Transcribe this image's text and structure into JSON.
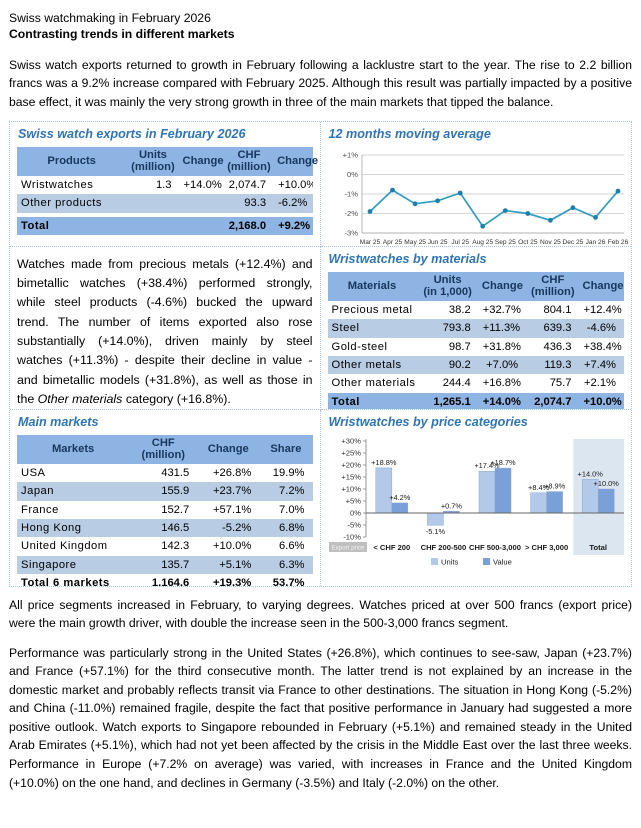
{
  "page": {
    "title_line1": "Swiss watchmaking in February 2026",
    "title_line2": "Contrasting trends in different markets",
    "intro": "Swiss watch exports returned to growth in February following a lacklustre start to the year. The rise to 2.2 billion francs was a 9.2% increase compared with February 2025.  Although this result was partially impacted by a positive base effect, it was mainly the very strong growth in three of the main markets that tipped the balance.",
    "materials_paragraph": {
      "pre": "Watches made from precious metals (+12.4%) and bimetallic watches (+38.4%) performed strongly, while steel products (-4.6%) bucked the upward trend. The number of items exported also rose substantially (+14.0%), driven mainly by steel watches (+11.3%) - despite their decline in value - and bimetallic models (+31.8%), as well as those in the ",
      "italic": "Other materials",
      "post": " category (+16.8%)."
    },
    "prices_paragraph": "All price segments increased in February, to varying degrees. Watches priced at over 500 francs (export price) were the main growth driver, with double the increase seen in the 500-3,000 francs segment.",
    "markets_paragraph": "Performance was particularly strong in the United States (+26.8%), which continues to see-saw, Japan (+23.7%) and France (+57.1%) for the third consecutive month. The latter trend is not explained by an increase in the domestic market and probably reflects transit via France to other destinations. The situation in Hong Kong (-5.2%) and China (-11.0%) remained fragile, despite the fact that positive performance in January had suggested a more positive outlook. Watch exports to Singapore rebounded in February (+5.1%) and remained steady in the United Arab Emirates (+5.1%), which had not yet been affected by the crisis in the Middle East over the last three weeks. Performance in Europe (+7.2% on average) was varied, with increases in France and the United Kingdom (+10.0%) on the one hand, and declines in Germany (-3.5%) and Italy (-2.0%) on the other."
  },
  "exports_table": {
    "title": "Swiss watch exports in February 2026",
    "headers": {
      "products": "Products",
      "units_l1": "Units",
      "units_l2": "(million)",
      "change1": "Change",
      "chf_l1": "CHF",
      "chf_l2": "(million)",
      "change2": "Change"
    },
    "rows": [
      {
        "name": "Wristwatches",
        "units": "1.3",
        "units_change": "+14.0%",
        "chf": "2,074.7",
        "chf_change": "+10.0%"
      },
      {
        "name": "Other products",
        "units": "",
        "units_change": "",
        "chf": "93.3",
        "chf_change": "-6.2%"
      }
    ],
    "total": {
      "name": "Total",
      "units": "",
      "units_change": "",
      "chf": "2,168.0",
      "chf_change": "+9.2%"
    }
  },
  "materials_table": {
    "title": "Wristwatches by materials",
    "headers": {
      "materials": "Materials",
      "units_l1": "Units",
      "units_l2": "(in 1,000)",
      "change1": "Change",
      "chf_l1": "CHF",
      "chf_l2": "(million)",
      "change2": "Change"
    },
    "rows": [
      {
        "name": "Precious metal",
        "units": "38.2",
        "units_change": "+32.7%",
        "chf": "804.1",
        "chf_change": "+12.4%"
      },
      {
        "name": "Steel",
        "units": "793.8",
        "units_change": "+11.3%",
        "chf": "639.3",
        "chf_change": "-4.6%"
      },
      {
        "name": "Gold-steel",
        "units": "98.7",
        "units_change": "+31.8%",
        "chf": "436.3",
        "chf_change": "+38.4%"
      },
      {
        "name": "Other metals",
        "units": "90.2",
        "units_change": "+7.0%",
        "chf": "119.3",
        "chf_change": "+7.4%"
      },
      {
        "name": "Other materials",
        "units": "244.4",
        "units_change": "+16.8%",
        "chf": "75.7",
        "chf_change": "+2.1%"
      }
    ],
    "total": {
      "name": "Total",
      "units": "1,265.1",
      "units_change": "+14.0%",
      "chf": "2,074.7",
      "chf_change": "+10.0%"
    }
  },
  "markets_table": {
    "title": "Main markets",
    "headers": {
      "markets": "Markets",
      "chf_l1": "CHF",
      "chf_l2": "(million)",
      "change": "Change",
      "share": "Share"
    },
    "rows": [
      {
        "name": "USA",
        "chf": "431.5",
        "change": "+26.8%",
        "share": "19.9%"
      },
      {
        "name": "Japan",
        "chf": "155.9",
        "change": "+23.7%",
        "share": "7.2%"
      },
      {
        "name": "France",
        "chf": "152.7",
        "change": "+57.1%",
        "share": "7.0%"
      },
      {
        "name": "Hong Kong",
        "chf": "146.5",
        "change": "-5.2%",
        "share": "6.8%"
      },
      {
        "name": "United Kingdom",
        "chf": "142.3",
        "change": "+10.0%",
        "share": "6.6%"
      },
      {
        "name": "Singapore",
        "chf": "135.7",
        "change": "+5.1%",
        "share": "6.3%"
      }
    ],
    "total": {
      "name": "Total 6 markets",
      "chf": "1,164.6",
      "change": "+19.3%",
      "share": "53.7%"
    }
  },
  "chart_data": [
    {
      "type": "line",
      "title": "12 months moving average",
      "x": [
        "Mar 25",
        "Apr 25",
        "May 25",
        "Jun 25",
        "Jul 25",
        "Aug 25",
        "Sep 25",
        "Oct 25",
        "Nov 25",
        "Dec 25",
        "Jan 26",
        "Feb 26"
      ],
      "values": [
        -1.9,
        -0.8,
        -1.5,
        -1.35,
        -0.95,
        -2.65,
        -1.85,
        -2.0,
        -2.35,
        -1.7,
        -2.2,
        -0.85
      ],
      "xlabel": "",
      "ylabel": "",
      "ylim": [
        -3,
        1
      ],
      "ytick_values": [
        1,
        0,
        -1,
        -2,
        -3
      ],
      "ytick_labels": [
        "+1%",
        "0%",
        "-1%",
        "-2%",
        "-3%"
      ],
      "grid": true,
      "legend_position": "none",
      "line_color": "#2d9dc4",
      "marker_color": "#1d7fae"
    },
    {
      "type": "bar",
      "title": "Wristwatches by price categories",
      "categories": [
        "< CHF 200",
        "CHF 200-500",
        "CHF 500-3,000",
        "> CHF 3,000",
        "Total"
      ],
      "series": [
        {
          "name": "Units",
          "values": [
            18.8,
            -5.1,
            17.4,
            8.4,
            14.0
          ],
          "color": "#b3c9e9"
        },
        {
          "name": "Value",
          "values": [
            4.2,
            0.7,
            18.7,
            8.9,
            10.0
          ],
          "color": "#7aa0d8"
        }
      ],
      "xlabel": "",
      "ylabel": "",
      "ylim": [
        -10,
        30
      ],
      "ytick_step": 5,
      "grid": false,
      "legend_position": "bottom",
      "highlight_category": "Total",
      "highlight_color": "#dce6f1",
      "bar_border_color": "#8aa8d3",
      "corner_label": "Export price"
    }
  ]
}
